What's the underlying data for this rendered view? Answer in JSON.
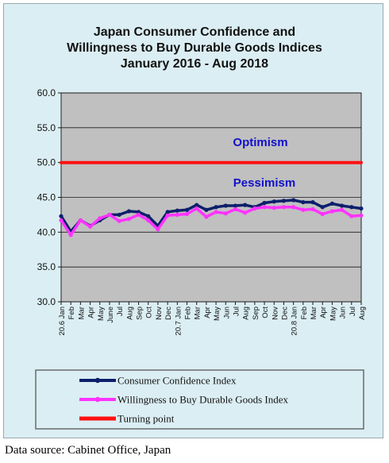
{
  "chart_data": {
    "type": "line",
    "title_lines": [
      "Japan Consumer Confidence and",
      "Willingness to Buy Durable Goods Indices",
      "January 2016 - Aug 2018"
    ],
    "ylim": [
      30,
      60
    ],
    "yticks": [
      "60.0",
      "55.0",
      "50.0",
      "45.0",
      "40.0",
      "35.0",
      "30.0"
    ],
    "x_tick_labels": [
      "20.6 Jan",
      "Feb",
      "Mar",
      "Apr",
      "May",
      "June",
      "Jul",
      "Aug",
      "Sep",
      "Oct",
      "Nov",
      "Dec",
      "20.7 Jan",
      "Feb",
      "Mar",
      "Apr",
      "May",
      "Jun",
      "Jul",
      "Aug",
      "Sep",
      "Oct",
      "Nov",
      "Dec",
      "20.8 Jan",
      "Feb",
      "Mar",
      "Apr",
      "May",
      "Jun",
      "Jul",
      "Aug"
    ],
    "annotations": {
      "optimism": "Optimism",
      "pessimism": "Pessimism"
    },
    "series": [
      {
        "name": "Consumer Confidence Index",
        "color": "#0d1f6b",
        "values": [
          42.3,
          40.1,
          41.7,
          40.9,
          41.7,
          42.5,
          42.5,
          43.0,
          42.9,
          42.3,
          40.9,
          42.9,
          43.1,
          43.2,
          43.9,
          43.2,
          43.6,
          43.8,
          43.8,
          43.9,
          43.6,
          44.2,
          44.4,
          44.5,
          44.6,
          44.3,
          44.3,
          43.6,
          44.1,
          43.8,
          43.6,
          43.4
        ]
      },
      {
        "name": "Willingness to Buy Durable Goods Index",
        "color": "#ff33ff",
        "values": [
          41.7,
          39.6,
          41.7,
          40.8,
          42.0,
          42.5,
          41.6,
          41.9,
          42.5,
          41.7,
          40.4,
          42.4,
          42.5,
          42.6,
          43.4,
          42.2,
          42.9,
          42.7,
          43.3,
          42.8,
          43.4,
          43.6,
          43.5,
          43.6,
          43.6,
          43.2,
          43.3,
          42.6,
          43.0,
          43.2,
          42.3,
          42.4
        ]
      },
      {
        "name": "Turning point",
        "color": "#ff1111",
        "values": [
          50,
          50,
          50,
          50,
          50,
          50,
          50,
          50,
          50,
          50,
          50,
          50,
          50,
          50,
          50,
          50,
          50,
          50,
          50,
          50,
          50,
          50,
          50,
          50,
          50,
          50,
          50,
          50,
          50,
          50,
          50,
          50
        ]
      }
    ],
    "legend_placement": "bottom",
    "grid": "horizontal"
  },
  "source_text": "Data source: Cabinet Office, Japan",
  "colors": {
    "plot_background": "#c0c0c0",
    "frame_background": "#dbeef3",
    "annotation_text": "#1010cc"
  }
}
